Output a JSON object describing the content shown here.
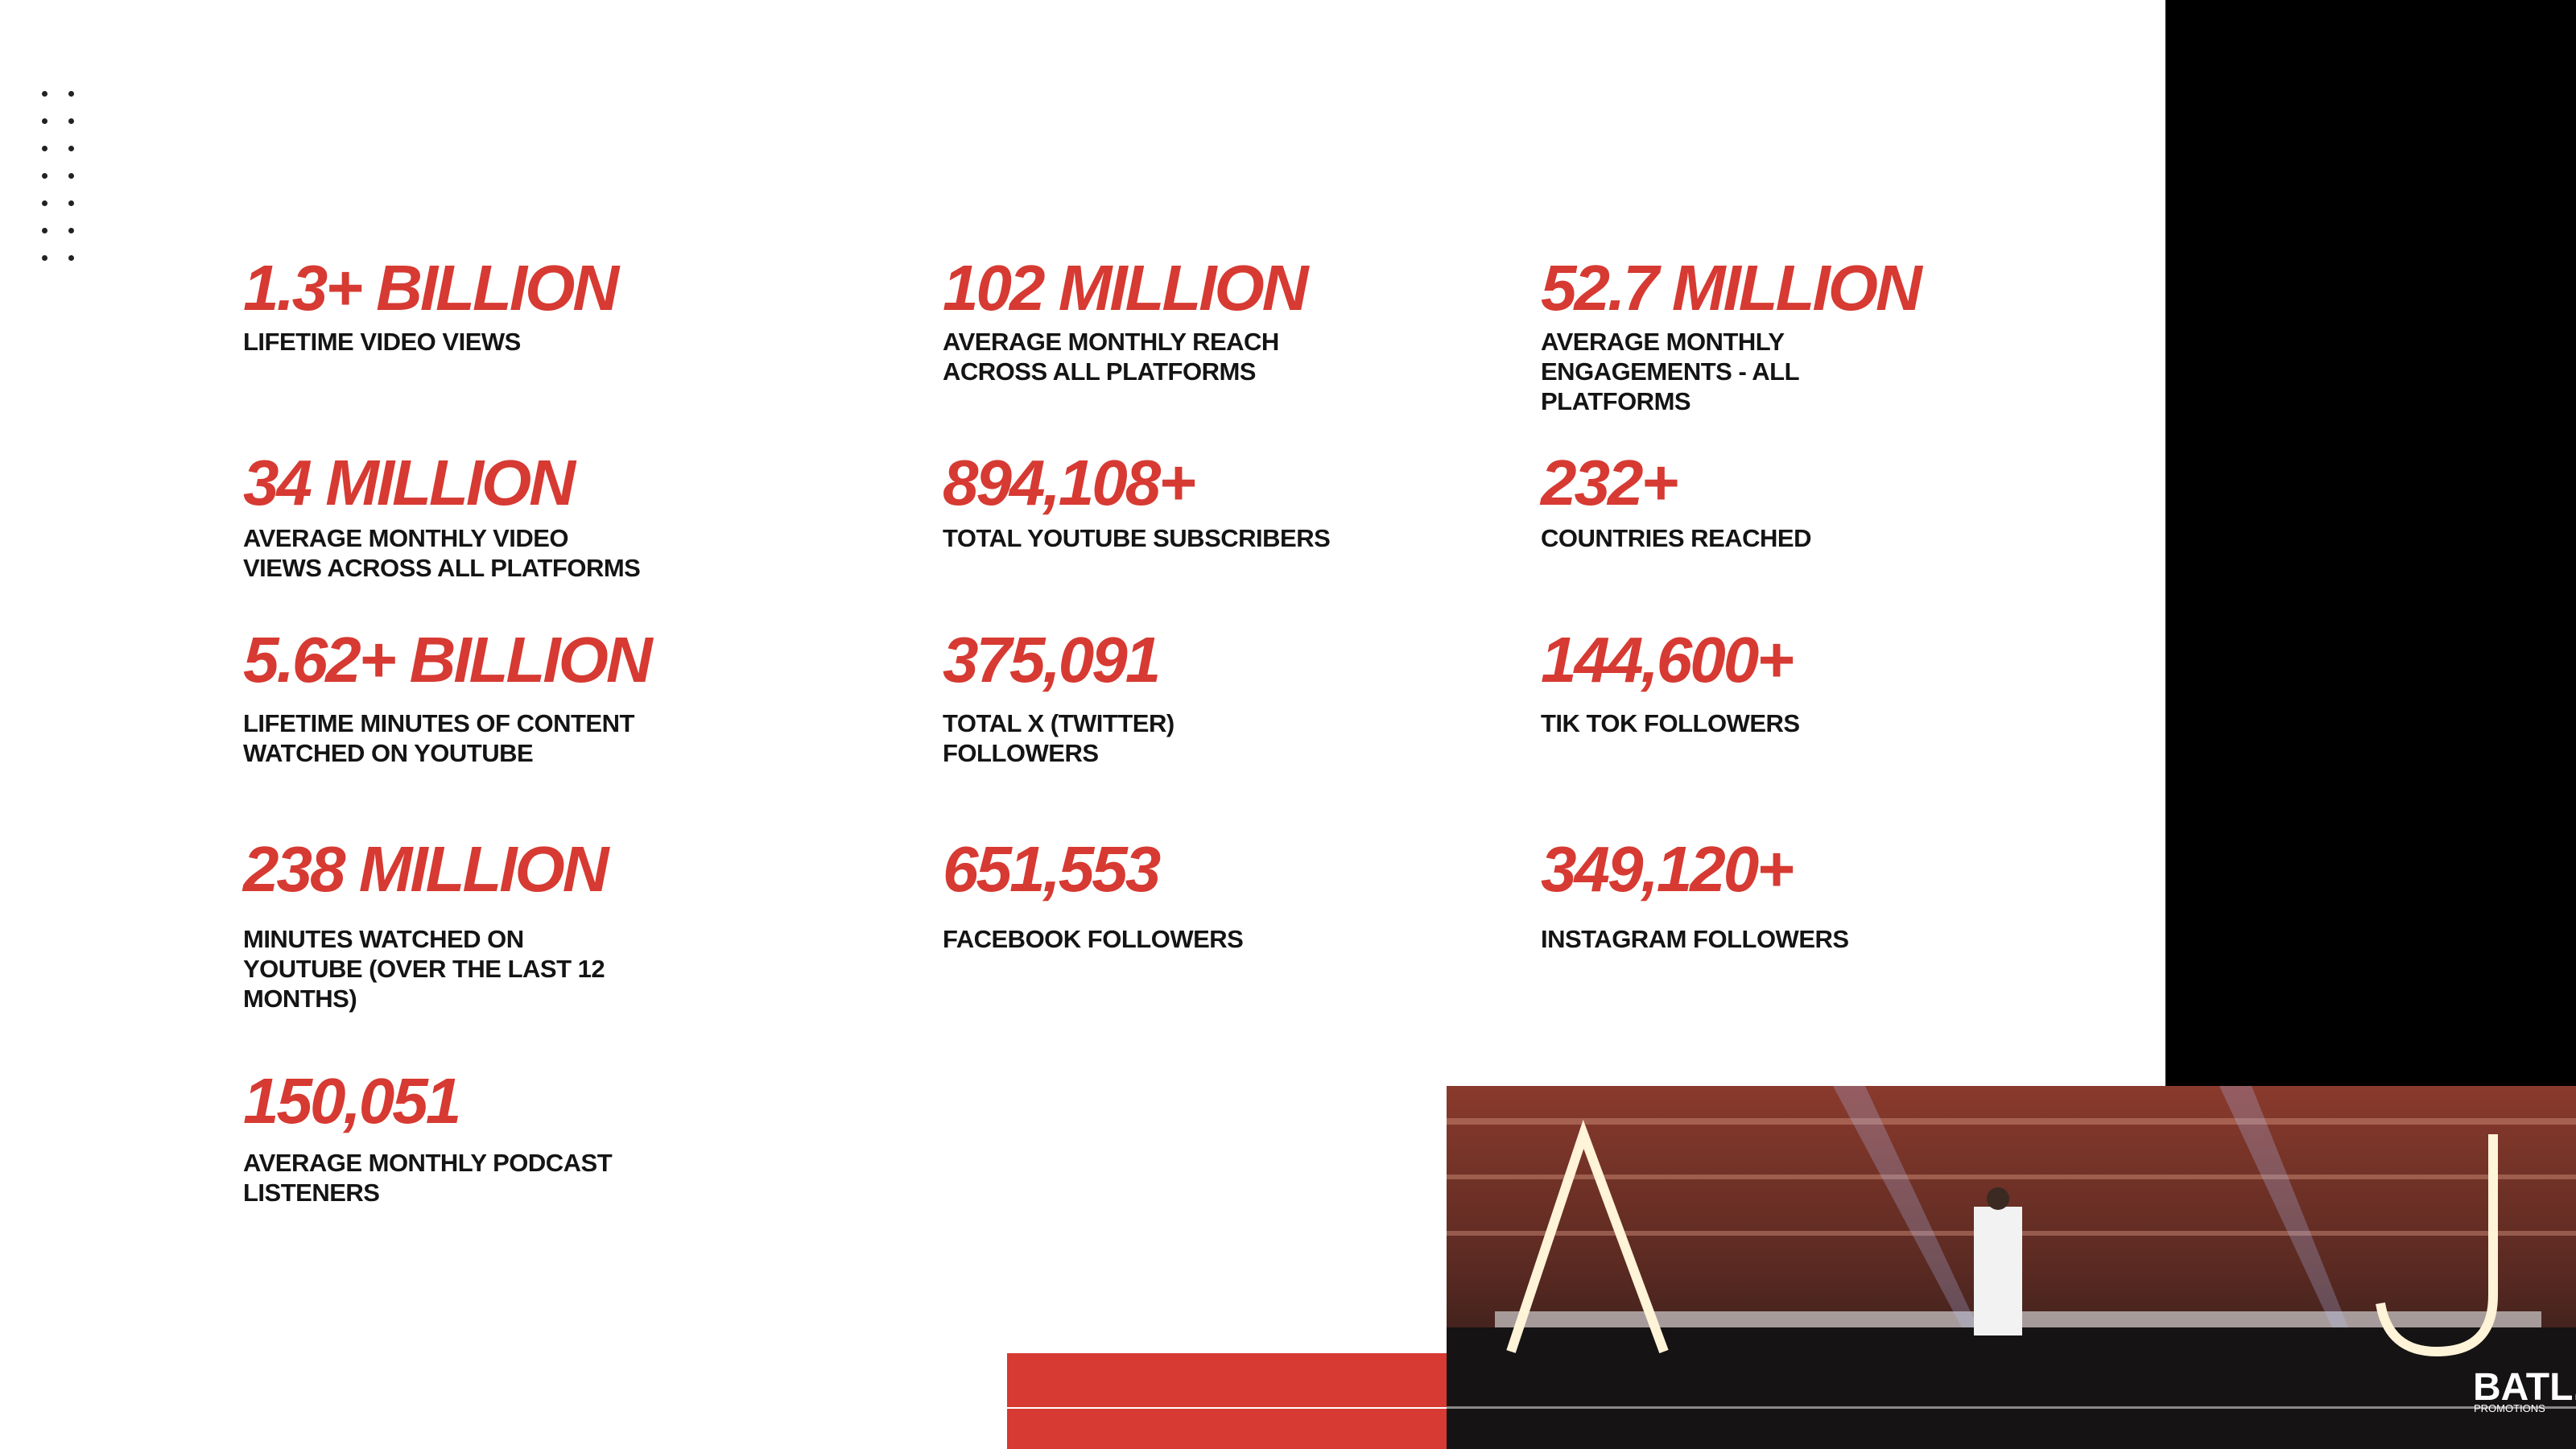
{
  "columns": [
    [
      {
        "value": "1.3+ BILLION",
        "label": [
          "LIFETIME VIDEO VIEWS"
        ]
      },
      {
        "value": "34 MILLION",
        "label": [
          "AVERAGE MONTHLY VIDEO",
          "VIEWS ACROSS ALL PLATFORMS"
        ]
      },
      {
        "value": "5.62+ BILLION",
        "label": [
          "LIFETIME MINUTES OF CONTENT",
          "WATCHED ON YOUTUBE"
        ]
      },
      {
        "value": "238 MILLION",
        "label": [
          "MINUTES WATCHED ON",
          "YOUTUBE (OVER THE LAST 12",
          "MONTHS)"
        ]
      },
      {
        "value": "150,051",
        "label": [
          "AVERAGE MONTHLY PODCAST",
          "LISTENERS"
        ]
      }
    ],
    [
      {
        "value": "102 MILLION",
        "label": [
          "AVERAGE MONTHLY REACH",
          "ACROSS ALL PLATFORMS"
        ]
      },
      {
        "value": "894,108+",
        "label": [
          "TOTAL YOUTUBE SUBSCRIBERS"
        ]
      },
      {
        "value": "375,091",
        "label": [
          "TOTAL X (TWITTER)",
          "FOLLOWERS"
        ]
      },
      {
        "value": "651,553",
        "label": [
          "FACEBOOK FOLLOWERS"
        ]
      }
    ],
    [
      {
        "value": "52.7 MILLION",
        "label": [
          "AVERAGE MONTHLY",
          "ENGAGEMENTS - ALL",
          "PLATFORMS"
        ]
      },
      {
        "value": "232+",
        "label": [
          "COUNTRIES REACHED"
        ]
      },
      {
        "value": "144,600+",
        "label": [
          "TIK TOK FOLLOWERS"
        ]
      },
      {
        "value": "349,120+",
        "label": [
          "INSTAGRAM FOLLOWERS"
        ]
      }
    ]
  ],
  "logo": {
    "name": "BATL.",
    "sub": "PROMOTIONS"
  }
}
